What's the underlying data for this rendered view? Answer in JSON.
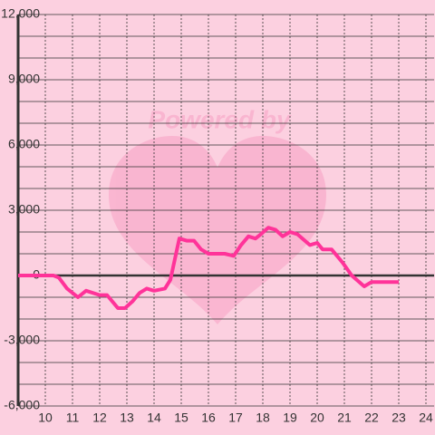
{
  "chart_data": {
    "type": "line",
    "watermark": "Powered by",
    "x": [
      9,
      10.3,
      10.5,
      10.8,
      11.2,
      11.5,
      12,
      12.27,
      12.67,
      12.93,
      13.2,
      13.47,
      13.73,
      14,
      14.4,
      14.6,
      14.93,
      15.2,
      15.47,
      15.73,
      16,
      16.6,
      16.93,
      17.2,
      17.47,
      17.73,
      17.93,
      18.2,
      18.47,
      18.73,
      19,
      19.27,
      19.73,
      20,
      20.2,
      20.53,
      20.93,
      21.27,
      21.73,
      22,
      23
    ],
    "series": [
      {
        "color": "#ff3399",
        "values": [
          0,
          0,
          -100,
          -600,
          -1000,
          -700,
          -900,
          -900,
          -1500,
          -1500,
          -1200,
          -800,
          -600,
          -700,
          -600,
          -200,
          1700,
          1600,
          1600,
          1200,
          1000,
          1000,
          900,
          1400,
          1800,
          1700,
          1900,
          2200,
          2100,
          1800,
          2000,
          1900,
          1400,
          1500,
          1200,
          1200,
          600,
          0,
          -500,
          -300,
          -300
        ]
      }
    ],
    "xlim": [
      9,
      24.3
    ],
    "xticks": [
      10,
      11,
      12,
      13,
      14,
      15,
      16,
      17,
      18,
      19,
      20,
      21,
      22,
      23,
      24
    ],
    "ylim": [
      -6000,
      12000
    ],
    "yticks": [
      {
        "value": -6000,
        "label": "-6,000"
      },
      {
        "value": -3000,
        "label": "-3,000"
      },
      0,
      {
        "value": 3000,
        "label": "3,000"
      },
      {
        "value": 6000,
        "label": "6,000"
      },
      {
        "value": 9000,
        "label": "9,000"
      },
      {
        "value": 12000,
        "label": "12,000"
      }
    ],
    "yminorticks": [
      -5000,
      -4000,
      -2000,
      -1000,
      1000,
      2000,
      4000,
      5000,
      7000,
      8000,
      10000,
      11000
    ],
    "grid": true
  }
}
